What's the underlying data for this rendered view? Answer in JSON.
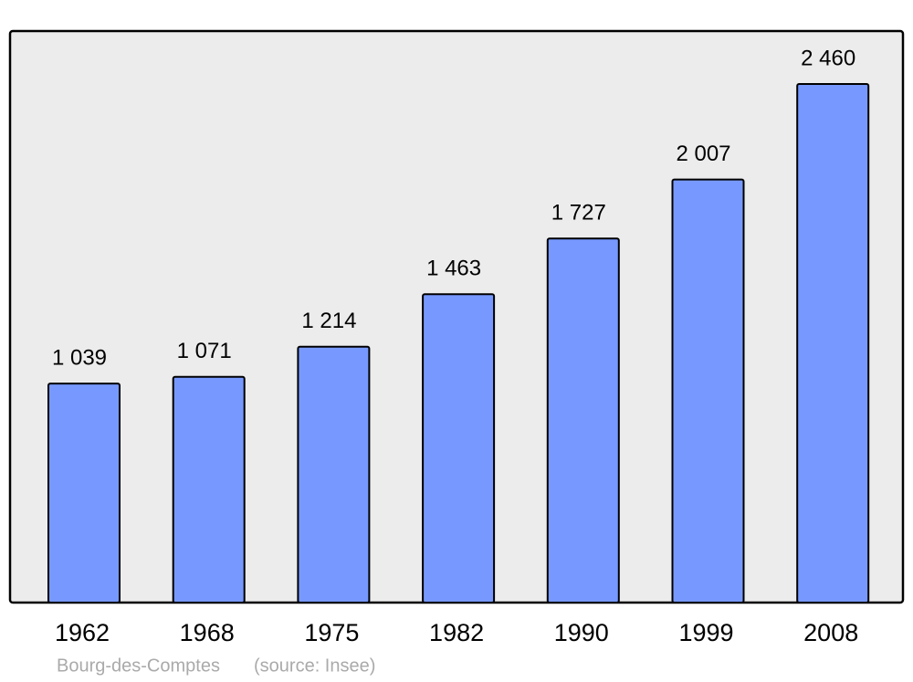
{
  "chart_data": {
    "type": "bar",
    "categories": [
      "1962",
      "1968",
      "1975",
      "1982",
      "1990",
      "1999",
      "2008"
    ],
    "values": [
      1039,
      1071,
      1214,
      1463,
      1727,
      2007,
      2460
    ],
    "value_labels": [
      "1 039",
      "1 071",
      "1 214",
      "1 463",
      "1 727",
      "2 007",
      "2 460"
    ],
    "color": "#7799ff",
    "caption": "Bourg-des-Comptes",
    "source": "(source: Insee)"
  }
}
